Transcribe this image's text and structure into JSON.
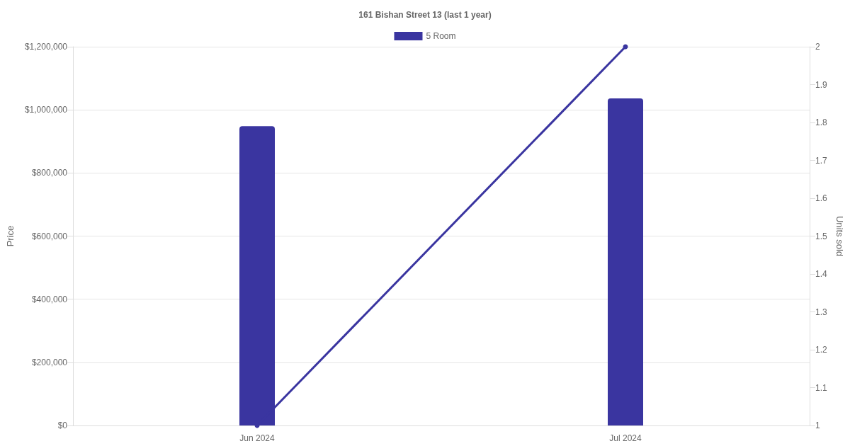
{
  "chart_data": {
    "type": "bar",
    "title": "161 Bishan Street 13 (last 1 year)",
    "ylabel": "Price",
    "y2label": "Units sold",
    "categories": [
      "Jun 2024",
      "Jul 2024"
    ],
    "series": [
      {
        "name": "5 Room",
        "color": "#3a35a0",
        "values": [
          948000,
          1036000
        ]
      },
      {
        "type": "line",
        "axis": "y2",
        "color": "#3a35a0",
        "values": [
          1,
          2
        ],
        "marker": "circle"
      }
    ],
    "ylim": [
      0,
      1200000
    ],
    "yticks": [
      {
        "value": 0,
        "label": "$0"
      },
      {
        "value": 200000,
        "label": "$200,000"
      },
      {
        "value": 400000,
        "label": "$400,000"
      },
      {
        "value": 600000,
        "label": "$600,000"
      },
      {
        "value": 800000,
        "label": "$800,000"
      },
      {
        "value": 1000000,
        "label": "$1,000,000"
      },
      {
        "value": 1200000,
        "label": "$1,200,000"
      }
    ],
    "y2lim": [
      1,
      2
    ],
    "y2ticks": [
      1,
      1.1,
      1.2,
      1.3,
      1.4,
      1.5,
      1.6,
      1.7,
      1.8,
      1.9,
      2
    ],
    "grid": "y",
    "legend": "top"
  }
}
